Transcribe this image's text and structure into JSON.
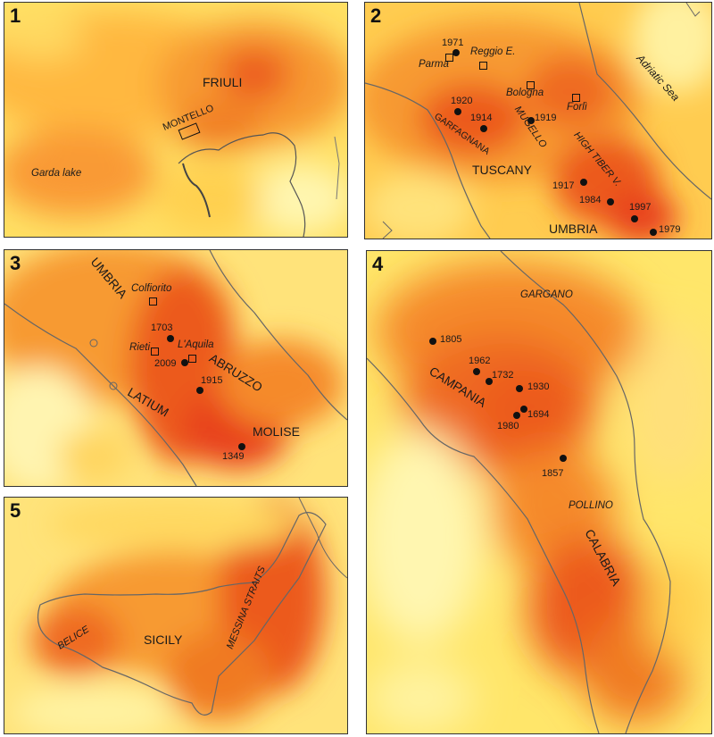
{
  "panels": [
    {
      "number": "1",
      "labels": {
        "region_friuli": "FRIULI",
        "area_montello": "MONTELLO",
        "lake_garda": "Garda lake"
      }
    },
    {
      "number": "2",
      "labels": {
        "city_parma": "Parma",
        "city_reggio": "Reggio E.",
        "city_bologna": "Bologna",
        "city_forli": "Forlì",
        "area_garfagnana": "GARFAGNANA",
        "area_mugello": "MUGELLO",
        "area_high_tiber": "HIGH TIBER V.",
        "region_tuscany": "TUSCANY",
        "region_umbria": "UMBRIA",
        "sea_adriatic": "Adriatic Sea"
      },
      "years": [
        "1971",
        "1920",
        "1914",
        "1919",
        "1917",
        "1984",
        "1997",
        "1979"
      ]
    },
    {
      "number": "3",
      "labels": {
        "region_umbria": "UMBRIA",
        "city_colfiorito": "Colfiorito",
        "city_rieti": "Rieti",
        "city_laquila": "L'Aquila",
        "region_abruzzo": "ABRUZZO",
        "region_latium": "LATIUM",
        "region_molise": "MOLISE"
      },
      "years": [
        "1703",
        "2009",
        "1915",
        "1349"
      ]
    },
    {
      "number": "4",
      "labels": {
        "area_gargano": "GARGANO",
        "region_campania": "CAMPANIA",
        "area_pollino": "POLLINO",
        "region_calabria": "CALABRIA"
      },
      "years": [
        "1805",
        "1962",
        "1732",
        "1930",
        "1694",
        "1980",
        "1857"
      ]
    },
    {
      "number": "5",
      "labels": {
        "area_belice": "BELICE",
        "region_sicily": "SICILY",
        "area_messina": "MESSINA STRAITS"
      }
    }
  ],
  "colors": {
    "low": "#fff6a0",
    "mid": "#ffc640",
    "high": "#f07a20",
    "peak": "#e8421c"
  }
}
